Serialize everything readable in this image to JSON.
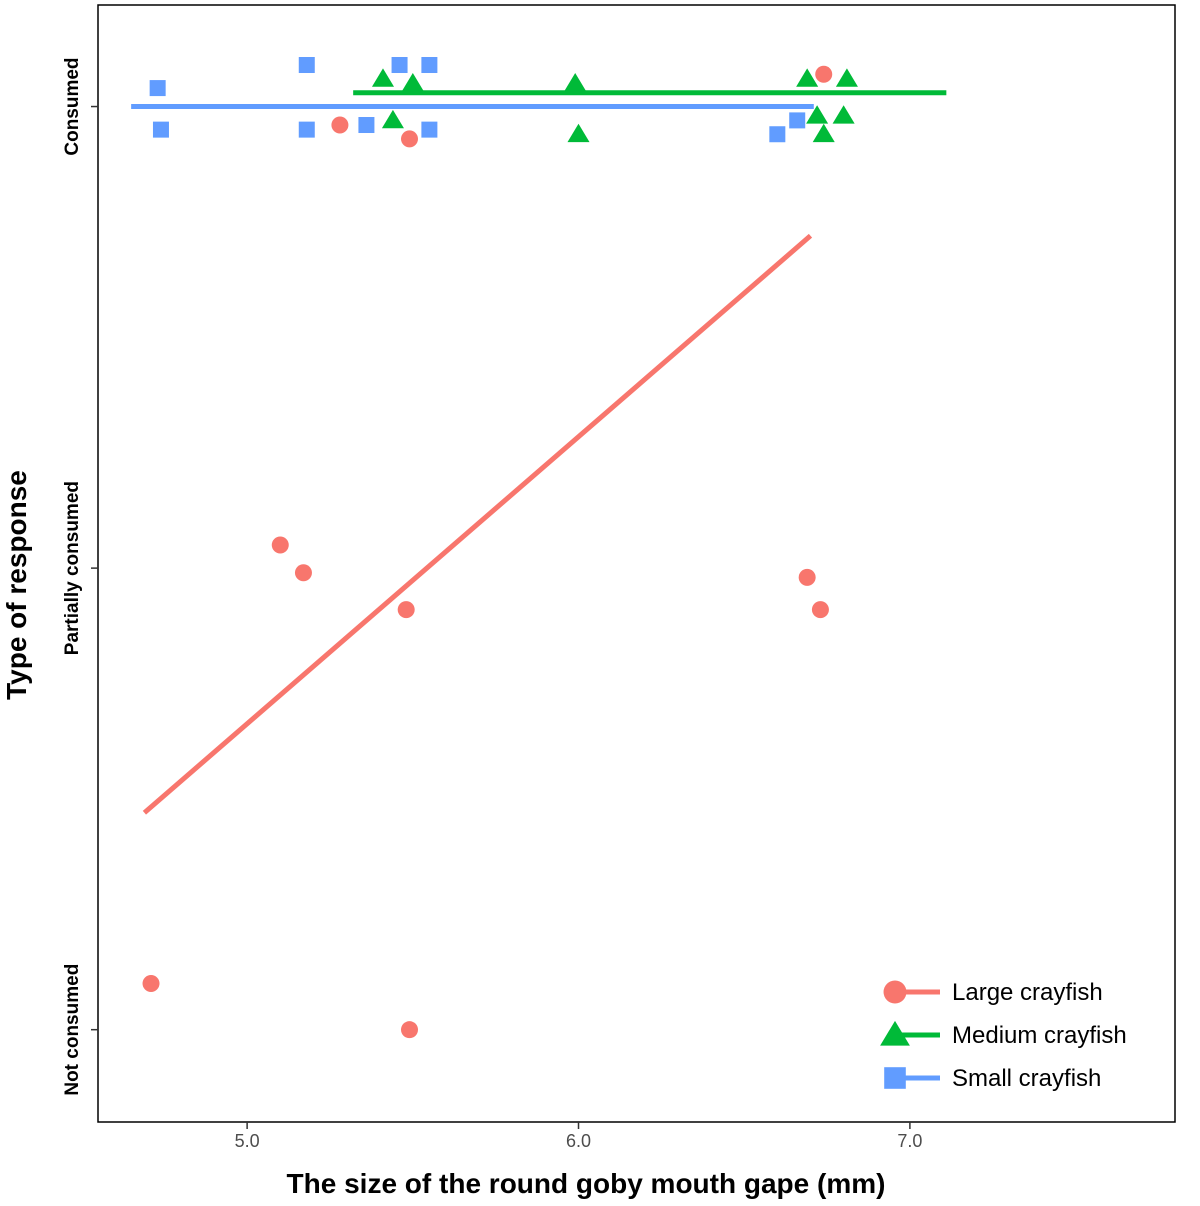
{
  "chart_data": {
    "type": "scatter",
    "xlabel": "The size of the round goby mouth gape (mm)",
    "ylabel": "Type of response",
    "xlim": [
      4.55,
      7.8
    ],
    "ylim": [
      -0.2,
      2.22
    ],
    "x_ticks": [
      {
        "value": 5.0,
        "label": "5.0"
      },
      {
        "value": 6.0,
        "label": "6.0"
      },
      {
        "value": 7.0,
        "label": "7.0"
      }
    ],
    "y_categories": [
      "Not consumed",
      "Partially consumed",
      "Consumed"
    ],
    "grid": false,
    "legend_position": "bottom-right",
    "series": [
      {
        "name": "Large crayfish",
        "marker": "circle",
        "color": "#F8766D",
        "points": [
          {
            "x": 4.71,
            "y": 0.1
          },
          {
            "x": 5.49,
            "y": 0.0
          },
          {
            "x": 5.1,
            "y": 1.05
          },
          {
            "x": 5.17,
            "y": 0.99
          },
          {
            "x": 5.48,
            "y": 0.91
          },
          {
            "x": 6.69,
            "y": 0.98
          },
          {
            "x": 6.73,
            "y": 0.91
          },
          {
            "x": 5.28,
            "y": 1.96
          },
          {
            "x": 5.49,
            "y": 1.93
          },
          {
            "x": 6.74,
            "y": 2.07
          }
        ],
        "fit_line": {
          "x": [
            4.69,
            6.7
          ],
          "y": [
            0.47,
            1.72
          ]
        }
      },
      {
        "name": "Medium crayfish",
        "marker": "triangle",
        "color": "#00BA38",
        "points": [
          {
            "x": 5.41,
            "y": 2.06
          },
          {
            "x": 5.5,
            "y": 2.05
          },
          {
            "x": 5.44,
            "y": 1.97
          },
          {
            "x": 5.99,
            "y": 2.05
          },
          {
            "x": 6.0,
            "y": 1.94
          },
          {
            "x": 6.69,
            "y": 2.06
          },
          {
            "x": 6.81,
            "y": 2.06
          },
          {
            "x": 6.72,
            "y": 1.98
          },
          {
            "x": 6.8,
            "y": 1.98
          },
          {
            "x": 6.74,
            "y": 1.94
          }
        ],
        "fit_line": {
          "x": [
            5.32,
            7.11
          ],
          "y": [
            2.03,
            2.03
          ]
        }
      },
      {
        "name": "Small crayfish",
        "marker": "square",
        "color": "#619CFF",
        "points": [
          {
            "x": 4.73,
            "y": 2.04
          },
          {
            "x": 4.74,
            "y": 1.95
          },
          {
            "x": 5.18,
            "y": 2.09
          },
          {
            "x": 5.18,
            "y": 1.95
          },
          {
            "x": 5.36,
            "y": 1.96
          },
          {
            "x": 5.46,
            "y": 2.09
          },
          {
            "x": 5.55,
            "y": 2.09
          },
          {
            "x": 5.55,
            "y": 1.95
          },
          {
            "x": 6.6,
            "y": 1.94
          },
          {
            "x": 6.66,
            "y": 1.97
          }
        ],
        "fit_line": {
          "x": [
            4.65,
            6.71
          ],
          "y": [
            2.0,
            2.0
          ]
        }
      }
    ]
  }
}
